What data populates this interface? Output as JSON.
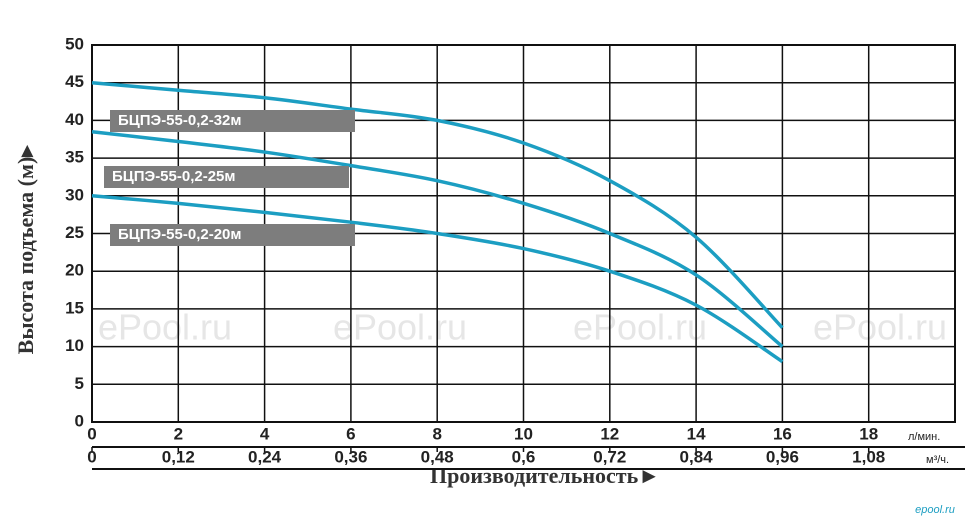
{
  "chart_data": {
    "type": "line",
    "ylabel": "Высота подъема (м)▸",
    "xlabel": "Производительность►",
    "xunit": "л/мин.",
    "x2unit": "м³/ч.",
    "watermark": "ePool.ru",
    "site": "epool.ru",
    "x": [
      0,
      2,
      4,
      6,
      8,
      10,
      12,
      14,
      16
    ],
    "series": [
      {
        "name": "БЦПЭ-55-0,2-32м",
        "color": "#1c9ec2",
        "values": [
          45,
          44,
          43,
          41.5,
          40,
          37,
          32,
          24.5,
          12.5
        ]
      },
      {
        "name": "БЦПЭ-55-0,2-25м",
        "color": "#1c9ec2",
        "values": [
          38.5,
          37.2,
          35.8,
          34,
          32,
          29,
          25,
          19.5,
          10
        ]
      },
      {
        "name": "БЦПЭ-55-0,2-20м",
        "color": "#1c9ec2",
        "values": [
          30,
          29,
          27.8,
          26.5,
          25,
          23,
          20,
          15.5,
          8
        ]
      }
    ],
    "xlim": [
      0,
      20
    ],
    "xticks": [
      0,
      2,
      4,
      6,
      8,
      10,
      12,
      14,
      16,
      18
    ],
    "x2lim": [
      0,
      1.2
    ],
    "x2ticks": [
      0,
      {
        "value": 0.12,
        "label": "0,12"
      },
      {
        "value": 0.24,
        "label": "0,24"
      },
      {
        "value": 0.36,
        "label": "0,36"
      },
      {
        "value": 0.48,
        "label": "0,48"
      },
      {
        "value": 0.6,
        "label": "0,6"
      },
      {
        "value": 0.72,
        "label": "0,72"
      },
      {
        "value": 0.84,
        "label": "0,84"
      },
      {
        "value": 0.96,
        "label": "0,96"
      },
      {
        "value": 1.08,
        "label": "1,08"
      }
    ],
    "ylim": [
      0,
      50
    ],
    "yticks": [
      0,
      5,
      10,
      15,
      20,
      25,
      30,
      35,
      40,
      45,
      50
    ],
    "grid": true
  }
}
